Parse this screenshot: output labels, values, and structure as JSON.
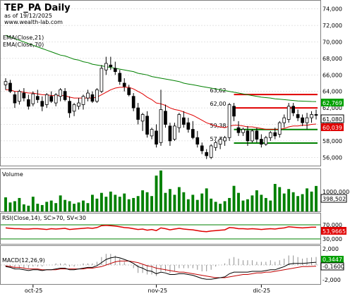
{
  "header": {
    "title": "TEP_PA Daily",
    "as_of": "as of 19/12/2025",
    "site": "www.wealth-lab.com",
    "ema21_label": "EMA(Close,21)",
    "ema70_label": "EMA(Close,70)"
  },
  "colors": {
    "up": "#ffffff",
    "down": "#000000",
    "ema21": "#e00000",
    "ema70": "#008000",
    "volume": "#008000",
    "rsi": "#e00000",
    "macd": "#000000",
    "macd_signal": "#c00000",
    "grid": "#c8c8c8",
    "green_badge": "#00a000",
    "red_badge": "#e00000"
  },
  "price_panel": {
    "y_ticks": [
      "74,000",
      "72,000",
      "70,000",
      "68,000",
      "66,000",
      "64,000",
      "62,000",
      "60,000",
      "58,000",
      "56,000"
    ],
    "y_tick_values": [
      74,
      72,
      70,
      68,
      66,
      64,
      62,
      60,
      58,
      56
    ],
    "last_ema70": "62,769",
    "last_close": "61,080",
    "last_ema21": "60,039",
    "levels": [
      {
        "label": "63,62",
        "value": 63.62,
        "color": "#e00000",
        "from_bar": 50
      },
      {
        "label": "62,00",
        "value": 62.0,
        "color": "#e00000",
        "from_bar": 50
      },
      {
        "label": "59,38",
        "value": 59.38,
        "color": "#008000",
        "from_bar": 50
      },
      {
        "label": "57,74",
        "value": 57.74,
        "color": "#008000",
        "from_bar": 50
      }
    ]
  },
  "volume_panel": {
    "label": "Volume",
    "y_tick": "1000,000",
    "last_value": "398,502"
  },
  "rsi_panel": {
    "label": "RSI(Close,14), SC>70, SV<30",
    "y_ticks": [
      "70,000",
      "30,000"
    ],
    "last_value": "53,9665"
  },
  "macd_panel": {
    "label": "MACD(12,26,9)",
    "y_ticks": [
      "2,000",
      "-2,000"
    ],
    "last_macd": "0,3447",
    "last_signal": "-0,1600"
  },
  "x_axis": {
    "labels": [
      {
        "text": "oct-25",
        "bar": 6
      },
      {
        "text": "nov-25",
        "bar": 33
      },
      {
        "text": "dic-25",
        "bar": 56
      }
    ]
  },
  "chart_data": {
    "type": "candlestick",
    "ohlc": [
      [
        64.8,
        65.6,
        64.2,
        65.2
      ],
      [
        65.0,
        65.4,
        63.8,
        64.0
      ],
      [
        63.6,
        64.0,
        62.0,
        62.6
      ],
      [
        62.8,
        64.2,
        62.4,
        64.0
      ],
      [
        63.8,
        64.4,
        62.8,
        63.2
      ],
      [
        63.0,
        63.6,
        61.8,
        62.2
      ],
      [
        62.5,
        64.0,
        62.2,
        63.7
      ],
      [
        63.4,
        64.2,
        62.6,
        63.0
      ],
      [
        62.8,
        63.4,
        61.6,
        62.2
      ],
      [
        62.4,
        63.8,
        62.0,
        63.6
      ],
      [
        63.4,
        64.0,
        62.6,
        62.8
      ],
      [
        62.6,
        63.8,
        62.2,
        63.6
      ],
      [
        63.4,
        64.4,
        62.8,
        64.2
      ],
      [
        64.0,
        64.4,
        62.8,
        63.0
      ],
      [
        62.8,
        63.4,
        60.8,
        61.4
      ],
      [
        61.6,
        62.6,
        61.0,
        62.4
      ],
      [
        62.2,
        63.2,
        61.8,
        62.6
      ],
      [
        62.4,
        63.6,
        61.8,
        63.4
      ],
      [
        63.2,
        64.2,
        62.8,
        63.8
      ],
      [
        63.6,
        64.0,
        62.6,
        62.8
      ],
      [
        62.8,
        64.4,
        62.6,
        64.2
      ],
      [
        64.0,
        67.2,
        63.8,
        66.8
      ],
      [
        66.6,
        68.2,
        66.0,
        67.4
      ],
      [
        67.2,
        68.2,
        66.6,
        67.0
      ],
      [
        66.8,
        67.6,
        66.0,
        66.4
      ],
      [
        66.2,
        66.6,
        64.8,
        65.2
      ],
      [
        65.0,
        65.6,
        64.0,
        64.6
      ],
      [
        64.4,
        64.8,
        63.4,
        63.6
      ],
      [
        63.4,
        63.8,
        61.6,
        62.0
      ],
      [
        62.0,
        62.6,
        60.0,
        60.6
      ],
      [
        60.4,
        61.4,
        59.2,
        61.2
      ],
      [
        61.0,
        61.6,
        58.4,
        58.8
      ],
      [
        58.6,
        59.6,
        58.2,
        59.4
      ],
      [
        59.2,
        60.0,
        57.2,
        57.6
      ],
      [
        57.8,
        64.2,
        57.4,
        61.8
      ],
      [
        61.6,
        62.4,
        59.6,
        60.0
      ],
      [
        59.8,
        60.2,
        57.4,
        58.0
      ],
      [
        58.2,
        60.2,
        58.0,
        59.8
      ],
      [
        59.6,
        61.4,
        59.0,
        61.2
      ],
      [
        60.8,
        61.6,
        59.6,
        60.0
      ],
      [
        60.2,
        60.8,
        59.0,
        59.4
      ],
      [
        59.4,
        60.4,
        58.2,
        58.4
      ],
      [
        58.4,
        59.2,
        57.2,
        57.6
      ],
      [
        57.4,
        57.8,
        56.4,
        56.8
      ],
      [
        56.6,
        57.0,
        55.8,
        56.2
      ],
      [
        56.0,
        57.6,
        55.8,
        57.4
      ],
      [
        57.2,
        58.0,
        56.8,
        57.8
      ],
      [
        57.6,
        58.4,
        57.0,
        58.2
      ],
      [
        58.0,
        58.6,
        57.4,
        58.4
      ],
      [
        58.4,
        62.6,
        58.0,
        62.4
      ],
      [
        62.2,
        62.6,
        60.4,
        61.0
      ],
      [
        59.6,
        60.4,
        58.6,
        59.0
      ],
      [
        59.0,
        59.6,
        58.6,
        59.4
      ],
      [
        59.2,
        59.8,
        57.4,
        58.0
      ],
      [
        58.0,
        59.4,
        57.8,
        59.2
      ],
      [
        59.2,
        59.6,
        57.8,
        58.2
      ],
      [
        58.2,
        58.8,
        57.2,
        57.6
      ],
      [
        57.6,
        58.6,
        57.4,
        58.4
      ],
      [
        58.4,
        59.2,
        58.0,
        59.0
      ],
      [
        59.0,
        59.6,
        58.2,
        58.6
      ],
      [
        58.8,
        60.4,
        58.4,
        60.2
      ],
      [
        60.2,
        61.2,
        59.6,
        60.8
      ],
      [
        60.6,
        62.6,
        60.2,
        62.2
      ],
      [
        62.2,
        62.6,
        61.0,
        61.4
      ],
      [
        61.2,
        61.8,
        60.4,
        60.8
      ],
      [
        60.8,
        61.2,
        59.8,
        60.2
      ],
      [
        60.2,
        61.4,
        59.4,
        60.8
      ],
      [
        60.8,
        61.6,
        60.2,
        61.2
      ],
      [
        61.2,
        61.8,
        60.6,
        61.1
      ]
    ],
    "ema21": [
      64.2,
      64.2,
      64.0,
      64.0,
      63.9,
      63.8,
      63.8,
      63.7,
      63.6,
      63.6,
      63.5,
      63.5,
      63.5,
      63.5,
      63.3,
      63.2,
      63.2,
      63.2,
      63.2,
      63.2,
      63.3,
      63.6,
      63.9,
      64.2,
      64.4,
      64.5,
      64.5,
      64.5,
      64.3,
      64.0,
      63.7,
      63.3,
      63.0,
      62.6,
      62.5,
      62.3,
      62.0,
      61.8,
      61.7,
      61.5,
      61.3,
      61.1,
      60.8,
      60.5,
      60.2,
      60.0,
      59.8,
      59.7,
      59.6,
      59.8,
      59.9,
      59.9,
      59.8,
      59.7,
      59.7,
      59.6,
      59.5,
      59.4,
      59.4,
      59.4,
      59.4,
      59.5,
      59.7,
      59.8,
      59.8,
      59.9,
      59.9,
      60.0,
      60.04
    ],
    "ema70": [
      70.8,
      70.6,
      70.4,
      70.2,
      70.0,
      69.8,
      69.6,
      69.4,
      69.2,
      69.0,
      68.8,
      68.6,
      68.4,
      68.3,
      68.1,
      67.9,
      67.8,
      67.6,
      67.5,
      67.3,
      67.2,
      67.1,
      67.0,
      66.9,
      66.8,
      66.7,
      66.6,
      66.5,
      66.4,
      66.2,
      66.1,
      66.0,
      65.8,
      65.7,
      65.6,
      65.5,
      65.4,
      65.3,
      65.2,
      65.0,
      64.9,
      64.8,
      64.7,
      64.6,
      64.5,
      64.4,
      64.3,
      64.2,
      64.1,
      64.0,
      63.9,
      63.8,
      63.7,
      63.6,
      63.5,
      63.4,
      63.3,
      63.25,
      63.2,
      63.1,
      63.05,
      63.0,
      62.95,
      62.9,
      62.85,
      62.82,
      62.8,
      62.78,
      62.769
    ],
    "volume": [
      220,
      140,
      160,
      210,
      110,
      90,
      230,
      120,
      100,
      150,
      170,
      130,
      250,
      180,
      160,
      120,
      140,
      170,
      130,
      260,
      200,
      290,
      230,
      310,
      260,
      230,
      280,
      190,
      210,
      240,
      330,
      300,
      240,
      560,
      640,
      290,
      350,
      260,
      380,
      300,
      190,
      260,
      180,
      280,
      360,
      200,
      150,
      120,
      160,
      210,
      400,
      290,
      170,
      190,
      250,
      330,
      260,
      210,
      170,
      430,
      380,
      280,
      350,
      300,
      240,
      270,
      360,
      310,
      398
    ],
    "rsi": [
      52,
      51,
      50,
      50,
      49,
      49,
      50,
      50,
      49,
      48,
      50,
      49,
      50,
      51,
      48,
      49,
      50,
      51,
      52,
      51,
      53,
      58,
      59,
      58,
      57,
      55,
      53,
      52,
      50,
      48,
      49,
      46,
      48,
      45,
      52,
      50,
      47,
      49,
      51,
      49,
      48,
      47,
      45,
      43,
      42,
      44,
      45,
      46,
      47,
      53,
      52,
      50,
      50,
      49,
      50,
      49,
      48,
      49,
      50,
      49,
      51,
      52,
      55,
      54,
      53,
      52,
      53,
      54,
      53.97
    ],
    "macd": [
      -0.2,
      -0.3,
      -0.5,
      -0.5,
      -0.6,
      -0.7,
      -0.6,
      -0.6,
      -0.7,
      -0.6,
      -0.6,
      -0.5,
      -0.4,
      -0.4,
      -0.6,
      -0.6,
      -0.5,
      -0.4,
      -0.3,
      -0.3,
      -0.1,
      0.3,
      0.7,
      0.9,
      1.0,
      0.9,
      0.7,
      0.5,
      0.2,
      -0.2,
      -0.4,
      -0.7,
      -0.8,
      -1.1,
      -0.9,
      -1.0,
      -1.2,
      -1.2,
      -1.1,
      -1.1,
      -1.2,
      -1.3,
      -1.5,
      -1.7,
      -1.8,
      -1.8,
      -1.7,
      -1.6,
      -1.5,
      -1.1,
      -0.9,
      -0.9,
      -0.9,
      -0.9,
      -0.8,
      -0.8,
      -0.8,
      -0.7,
      -0.6,
      -0.6,
      -0.4,
      -0.2,
      0.1,
      0.2,
      0.2,
      0.2,
      0.25,
      0.3,
      0.3447
    ],
    "macd_signal": [
      -0.1,
      -0.2,
      -0.3,
      -0.3,
      -0.4,
      -0.5,
      -0.5,
      -0.5,
      -0.6,
      -0.6,
      -0.6,
      -0.6,
      -0.5,
      -0.5,
      -0.5,
      -0.5,
      -0.5,
      -0.5,
      -0.4,
      -0.4,
      -0.3,
      -0.2,
      0.0,
      0.2,
      0.4,
      0.5,
      0.5,
      0.5,
      0.4,
      0.3,
      0.1,
      -0.1,
      -0.2,
      -0.4,
      -0.5,
      -0.6,
      -0.7,
      -0.8,
      -0.9,
      -0.9,
      -1.0,
      -1.1,
      -1.2,
      -1.3,
      -1.4,
      -1.5,
      -1.6,
      -1.6,
      -1.6,
      -1.5,
      -1.4,
      -1.3,
      -1.2,
      -1.2,
      -1.1,
      -1.0,
      -1.0,
      -0.9,
      -0.9,
      -0.8,
      -0.7,
      -0.6,
      -0.5,
      -0.4,
      -0.3,
      -0.2,
      -0.2,
      -0.18,
      -0.16
    ]
  }
}
